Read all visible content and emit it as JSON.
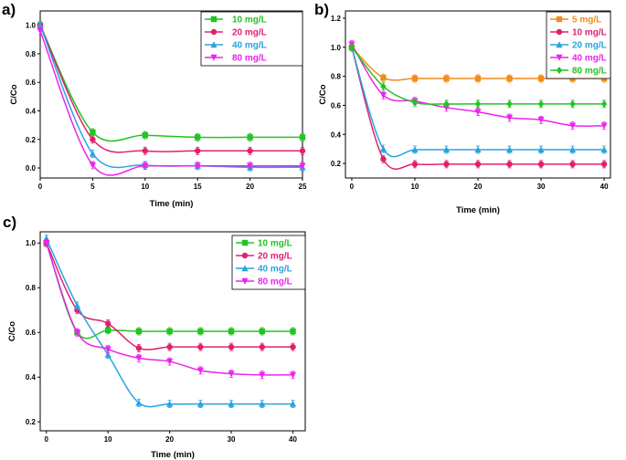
{
  "figure": {
    "panels": [
      {
        "id": "a",
        "label": "a)"
      },
      {
        "id": "b",
        "label": "b)"
      },
      {
        "id": "c",
        "label": "c)"
      }
    ]
  },
  "colors": {
    "green": "#22c322",
    "magenta_red": "#e0206e",
    "cyan_blue": "#29a3e0",
    "magenta": "#ee22ee",
    "orange": "#f08c1e"
  },
  "chart_data": [
    {
      "panel": "a)",
      "type": "line",
      "xlabel": "Time (min)",
      "ylabel": "C/Co",
      "xlim": [
        0,
        25
      ],
      "ylim": [
        -0.07,
        1.1
      ],
      "xticks": [
        0,
        5,
        10,
        15,
        20,
        25
      ],
      "yticks": [
        0.0,
        0.2,
        0.4,
        0.6,
        0.8,
        1.0
      ],
      "xtick_labels": [
        "0",
        "5",
        "10",
        "15",
        "20",
        "25"
      ],
      "ytick_labels": [
        "0.0",
        "0.2",
        "0.4",
        "0.6",
        "0.8",
        "1.0"
      ],
      "legend_position": "top-right",
      "series": [
        {
          "name": "10 mg/L",
          "color": "#22c322",
          "marker": "square",
          "x": [
            0,
            5,
            10,
            15,
            20,
            25
          ],
          "y": [
            1.0,
            0.25,
            0.23,
            0.215,
            0.215,
            0.215
          ]
        },
        {
          "name": "20 mg/L",
          "color": "#e0206e",
          "marker": "circle",
          "x": [
            0,
            5,
            10,
            15,
            20,
            25
          ],
          "y": [
            1.0,
            0.2,
            0.12,
            0.12,
            0.12,
            0.12
          ]
        },
        {
          "name": "40 mg/L",
          "color": "#29a3e0",
          "marker": "triangle-up",
          "x": [
            0,
            5,
            10,
            15,
            20,
            25
          ],
          "y": [
            1.0,
            0.1,
            0.02,
            0.015,
            0.005,
            0.005
          ]
        },
        {
          "name": "80 mg/L",
          "color": "#ee22ee",
          "marker": "triangle-down",
          "x": [
            0,
            5,
            10,
            15,
            20,
            25
          ],
          "y": [
            0.96,
            0.02,
            0.015,
            0.015,
            0.015,
            0.015
          ]
        }
      ]
    },
    {
      "panel": "b)",
      "type": "line",
      "xlabel": "Time (min)",
      "ylabel": "C/Co",
      "xlim": [
        -1,
        41
      ],
      "ylim": [
        0.1,
        1.25
      ],
      "xticks": [
        0,
        10,
        20,
        30,
        40
      ],
      "yticks": [
        0.2,
        0.4,
        0.6,
        0.8,
        1.0,
        1.2
      ],
      "xtick_labels": [
        "0",
        "10",
        "20",
        "30",
        "40"
      ],
      "ytick_labels": [
        "0.2",
        "0.4",
        "0.6",
        "0.8",
        "1.0",
        "1.2"
      ],
      "legend_position": "top-right",
      "series": [
        {
          "name": "5 mg/L",
          "color": "#f08c1e",
          "marker": "square",
          "x": [
            0,
            5,
            10,
            15,
            20,
            25,
            30,
            35,
            40
          ],
          "y": [
            1.0,
            0.79,
            0.785,
            0.785,
            0.785,
            0.785,
            0.785,
            0.785,
            0.785
          ]
        },
        {
          "name": "10 mg/L",
          "color": "#e0206e",
          "marker": "circle",
          "x": [
            0,
            5,
            10,
            15,
            20,
            25,
            30,
            35,
            40
          ],
          "y": [
            1.0,
            0.23,
            0.195,
            0.195,
            0.195,
            0.195,
            0.195,
            0.195,
            0.195
          ]
        },
        {
          "name": "20 mg/L",
          "color": "#29a3e0",
          "marker": "triangle-up",
          "x": [
            0,
            5,
            10,
            15,
            20,
            25,
            30,
            35,
            40
          ],
          "y": [
            1.0,
            0.3,
            0.295,
            0.295,
            0.295,
            0.295,
            0.295,
            0.295,
            0.295
          ]
        },
        {
          "name": "40 mg/L",
          "color": "#ee22ee",
          "marker": "triangle-down",
          "x": [
            0,
            5,
            10,
            15,
            20,
            25,
            30,
            35,
            40
          ],
          "y": [
            1.02,
            0.67,
            0.63,
            0.585,
            0.555,
            0.515,
            0.5,
            0.46,
            0.46
          ]
        },
        {
          "name": "80 mg/L",
          "color": "#22c322",
          "marker": "diamond",
          "x": [
            0,
            5,
            10,
            15,
            20,
            25,
            30,
            35,
            40
          ],
          "y": [
            1.0,
            0.73,
            0.62,
            0.61,
            0.61,
            0.61,
            0.61,
            0.61,
            0.61
          ]
        }
      ]
    },
    {
      "panel": "c)",
      "type": "line",
      "xlabel": "Time (min)",
      "ylabel": "C/Co",
      "xlim": [
        -1,
        42
      ],
      "ylim": [
        0.16,
        1.05
      ],
      "xticks": [
        0,
        10,
        20,
        30,
        40
      ],
      "yticks": [
        0.2,
        0.4,
        0.6,
        0.8,
        1.0
      ],
      "xtick_labels": [
        "0",
        "10",
        "20",
        "30",
        "40"
      ],
      "ytick_labels": [
        "0.2",
        "0.4",
        "0.6",
        "0.8",
        "1.0"
      ],
      "legend_position": "top-right",
      "series": [
        {
          "name": "10 mg/L",
          "color": "#22c322",
          "marker": "square",
          "x": [
            0,
            5,
            10,
            15,
            20,
            25,
            30,
            35,
            40
          ],
          "y": [
            1.0,
            0.6,
            0.61,
            0.605,
            0.605,
            0.605,
            0.605,
            0.605,
            0.605
          ]
        },
        {
          "name": "20 mg/L",
          "color": "#e0206e",
          "marker": "circle",
          "x": [
            0,
            5,
            10,
            15,
            20,
            25,
            30,
            35,
            40
          ],
          "y": [
            1.0,
            0.7,
            0.64,
            0.53,
            0.535,
            0.535,
            0.535,
            0.535,
            0.535
          ]
        },
        {
          "name": "40 mg/L",
          "color": "#29a3e0",
          "marker": "triangle-up",
          "x": [
            0,
            5,
            10,
            15,
            20,
            25,
            30,
            35,
            40
          ],
          "y": [
            1.02,
            0.72,
            0.5,
            0.285,
            0.28,
            0.28,
            0.28,
            0.28,
            0.28
          ]
        },
        {
          "name": "80 mg/L",
          "color": "#ee22ee",
          "marker": "triangle-down",
          "x": [
            0,
            5,
            10,
            15,
            20,
            25,
            30,
            35,
            40
          ],
          "y": [
            1.0,
            0.6,
            0.525,
            0.485,
            0.47,
            0.43,
            0.415,
            0.41,
            0.41
          ]
        }
      ]
    }
  ]
}
